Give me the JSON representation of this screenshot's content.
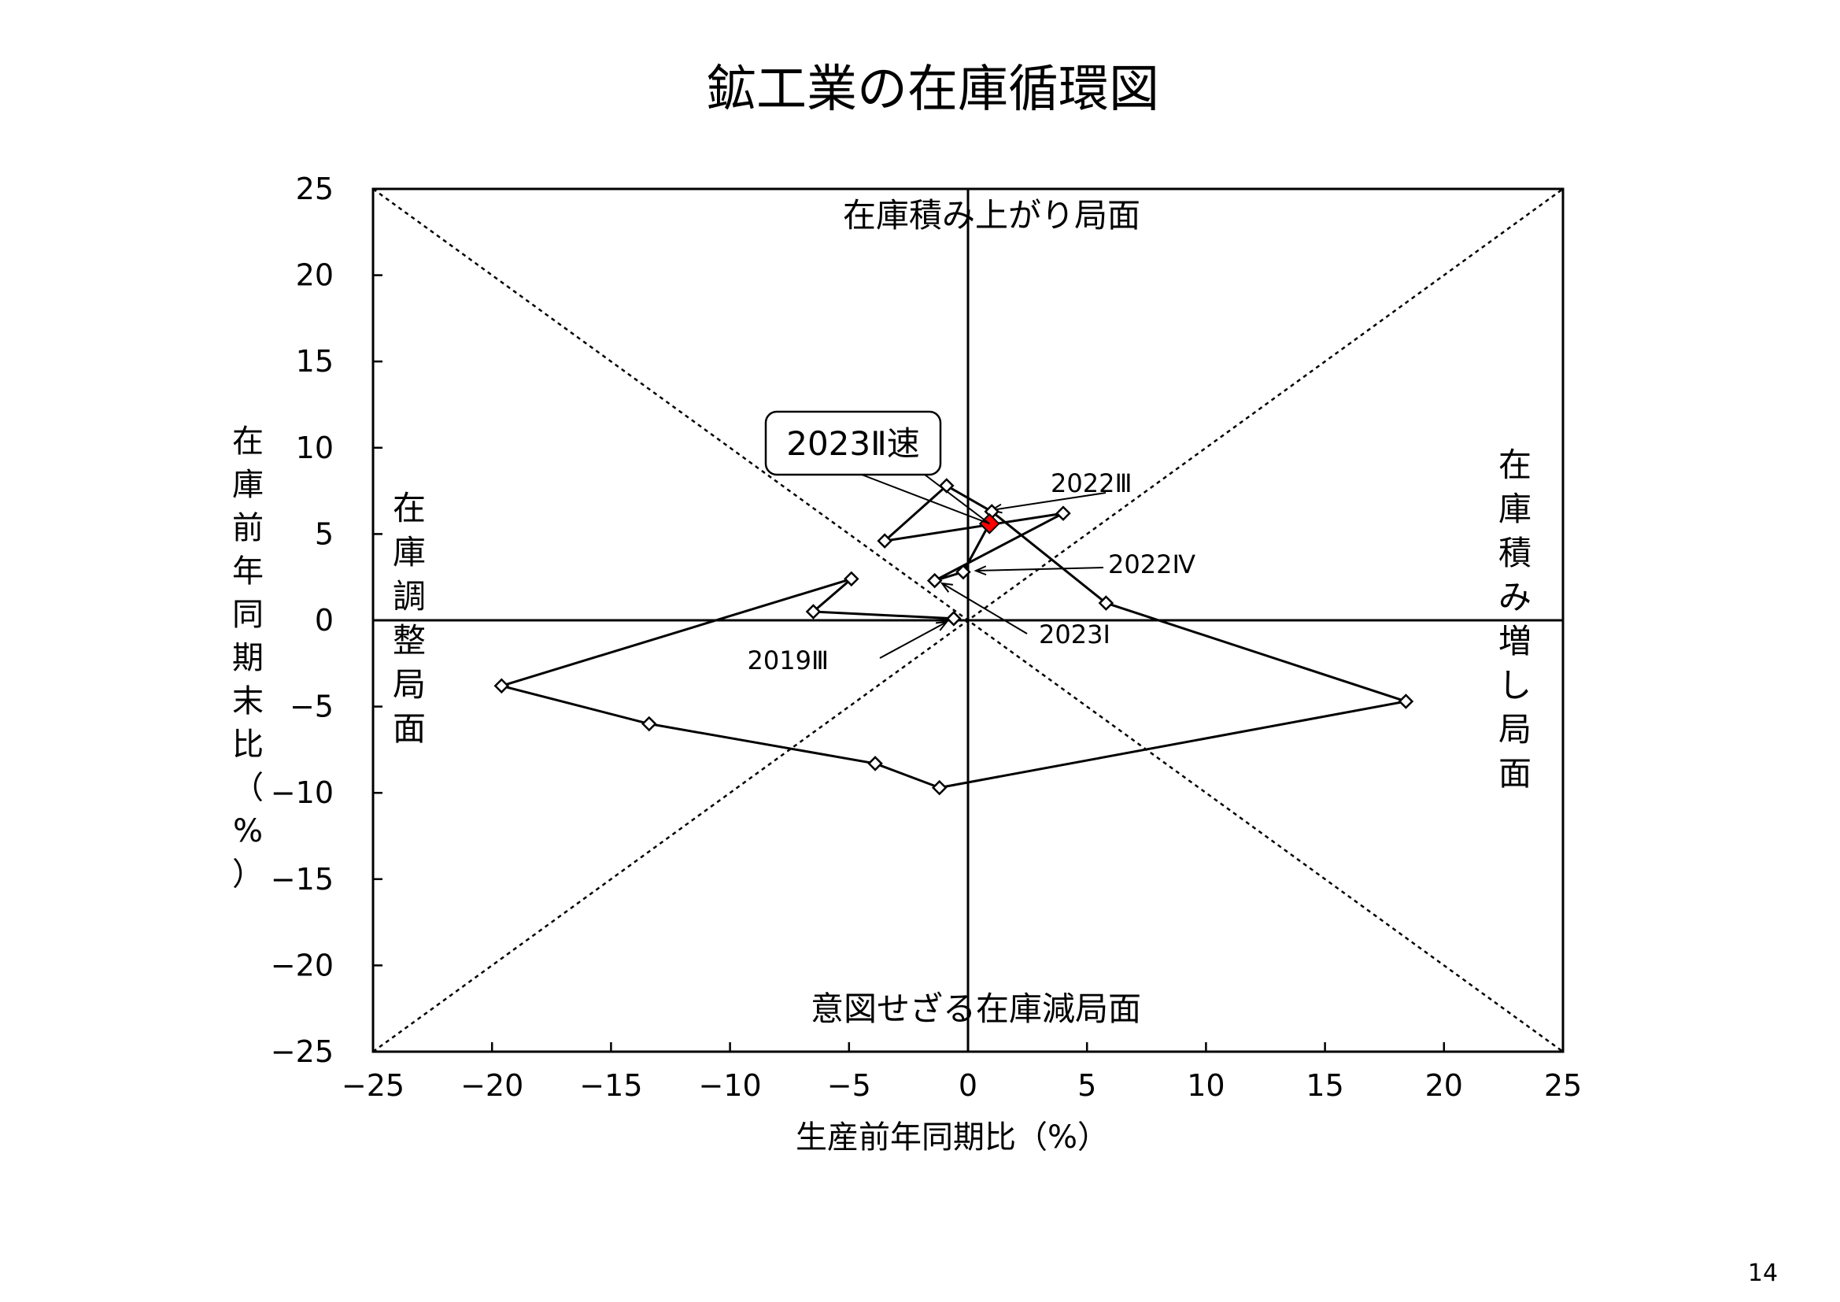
{
  "title": "鉱工業の在庫循環図",
  "page_number": "14",
  "chart_data": {
    "type": "scatter",
    "title": "鉱工業の在庫循環図",
    "xlabel": "生産前年同期比（%）",
    "ylabel": "在庫前年同期末比（%）",
    "xlim": [
      -25,
      25
    ],
    "ylim": [
      -25,
      25
    ],
    "x_ticks": [
      -25,
      -20,
      -15,
      -10,
      -5,
      0,
      5,
      10,
      15,
      20,
      25
    ],
    "y_ticks": [
      -25,
      -20,
      -15,
      -10,
      -5,
      0,
      5,
      10,
      15,
      20,
      25
    ],
    "x_tick_labels": [
      "−25",
      "−20",
      "−15",
      "−10",
      "−5",
      "0",
      "5",
      "10",
      "15",
      "20",
      "25"
    ],
    "y_tick_labels": [
      "−25",
      "−20",
      "−15",
      "−10",
      "−5",
      "0",
      "5",
      "10",
      "15",
      "20",
      "25"
    ],
    "grid": false,
    "guide_lines": "45-degree diagonals",
    "series": [
      {
        "x": [
          -0.6,
          -6.5,
          -4.9,
          -19.6,
          -13.4,
          -3.9,
          -1.2,
          18.4,
          5.8,
          1.0,
          -0.9,
          -3.5,
          4.0,
          -1.4,
          -0.2,
          0.9
        ],
        "y": [
          0.1,
          0.5,
          2.4,
          -3.8,
          -6.0,
          -8.3,
          -9.7,
          -4.7,
          1.0,
          6.3,
          7.8,
          4.6,
          6.2,
          2.3,
          2.8,
          5.6
        ],
        "color": "#000000",
        "marker": "diamond-open"
      }
    ],
    "highlight": {
      "x": 0.9,
      "y": 5.6,
      "color": "#ff0000",
      "label": "2023Ⅱ速"
    },
    "quadrant_labels": {
      "top": "在庫積み上がり局面",
      "bottom": "意図せざる在庫減局面",
      "left": [
        "在",
        "庫",
        "調",
        "整",
        "局",
        "面"
      ],
      "right": [
        "在",
        "庫",
        "積",
        "み",
        "増",
        "し",
        "局",
        "面"
      ]
    },
    "annotations": [
      {
        "text": "2019Ⅲ",
        "x": -0.6,
        "y": 0.1
      },
      {
        "text": "2022Ⅲ",
        "x": 1.0,
        "y": 6.3
      },
      {
        "text": "2022Ⅳ",
        "x": -0.2,
        "y": 2.8
      },
      {
        "text": "2023Ⅰ",
        "x": -1.4,
        "y": 2.3
      }
    ]
  }
}
